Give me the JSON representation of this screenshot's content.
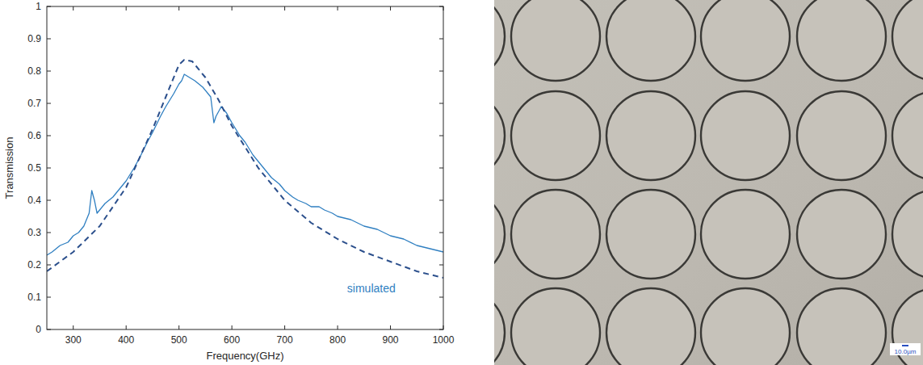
{
  "chart_data": {
    "type": "line",
    "xlabel": "Frequency(GHz)",
    "ylabel": "Transmission",
    "annotation": "simulated",
    "xlim": [
      250,
      1000
    ],
    "xticks": [
      300,
      400,
      500,
      600,
      700,
      800,
      900,
      1000
    ],
    "ylim": [
      0,
      1
    ],
    "yticks": [
      0,
      0.1,
      0.2,
      0.3,
      0.4,
      0.5,
      0.6,
      0.7,
      0.8,
      0.9,
      1
    ],
    "grid": false,
    "series": [
      {
        "color": "#2f7fc1",
        "line_style": "solid",
        "x": [
          250,
          260,
          275,
          290,
          300,
          310,
          320,
          330,
          335,
          340,
          345,
          350,
          360,
          375,
          390,
          400,
          415,
          425,
          440,
          450,
          465,
          475,
          490,
          500,
          505,
          510,
          520,
          530,
          545,
          555,
          560,
          563,
          566,
          570,
          580,
          590,
          600,
          615,
          625,
          640,
          650,
          665,
          675,
          690,
          700,
          715,
          725,
          740,
          750,
          765,
          775,
          790,
          800,
          825,
          850,
          875,
          900,
          925,
          950,
          975,
          1000
        ],
        "values": [
          0.23,
          0.24,
          0.26,
          0.27,
          0.29,
          0.3,
          0.32,
          0.36,
          0.43,
          0.4,
          0.36,
          0.37,
          0.39,
          0.41,
          0.44,
          0.46,
          0.5,
          0.53,
          0.58,
          0.61,
          0.66,
          0.69,
          0.73,
          0.76,
          0.77,
          0.79,
          0.78,
          0.77,
          0.75,
          0.73,
          0.72,
          0.68,
          0.64,
          0.66,
          0.69,
          0.67,
          0.64,
          0.6,
          0.58,
          0.54,
          0.52,
          0.49,
          0.47,
          0.45,
          0.43,
          0.41,
          0.4,
          0.39,
          0.38,
          0.38,
          0.37,
          0.36,
          0.35,
          0.34,
          0.32,
          0.31,
          0.29,
          0.28,
          0.26,
          0.25,
          0.24
        ]
      },
      {
        "color": "#2b4f8c",
        "line_style": "dashed",
        "x": [
          250,
          300,
          350,
          400,
          450,
          475,
          500,
          510,
          525,
          550,
          575,
          600,
          650,
          700,
          750,
          800,
          850,
          900,
          950,
          1000
        ],
        "values": [
          0.18,
          0.24,
          0.32,
          0.44,
          0.62,
          0.72,
          0.82,
          0.835,
          0.83,
          0.78,
          0.71,
          0.63,
          0.5,
          0.4,
          0.33,
          0.28,
          0.24,
          0.21,
          0.18,
          0.16
        ]
      }
    ]
  },
  "photo": {
    "scale_label": "10.0µm"
  }
}
